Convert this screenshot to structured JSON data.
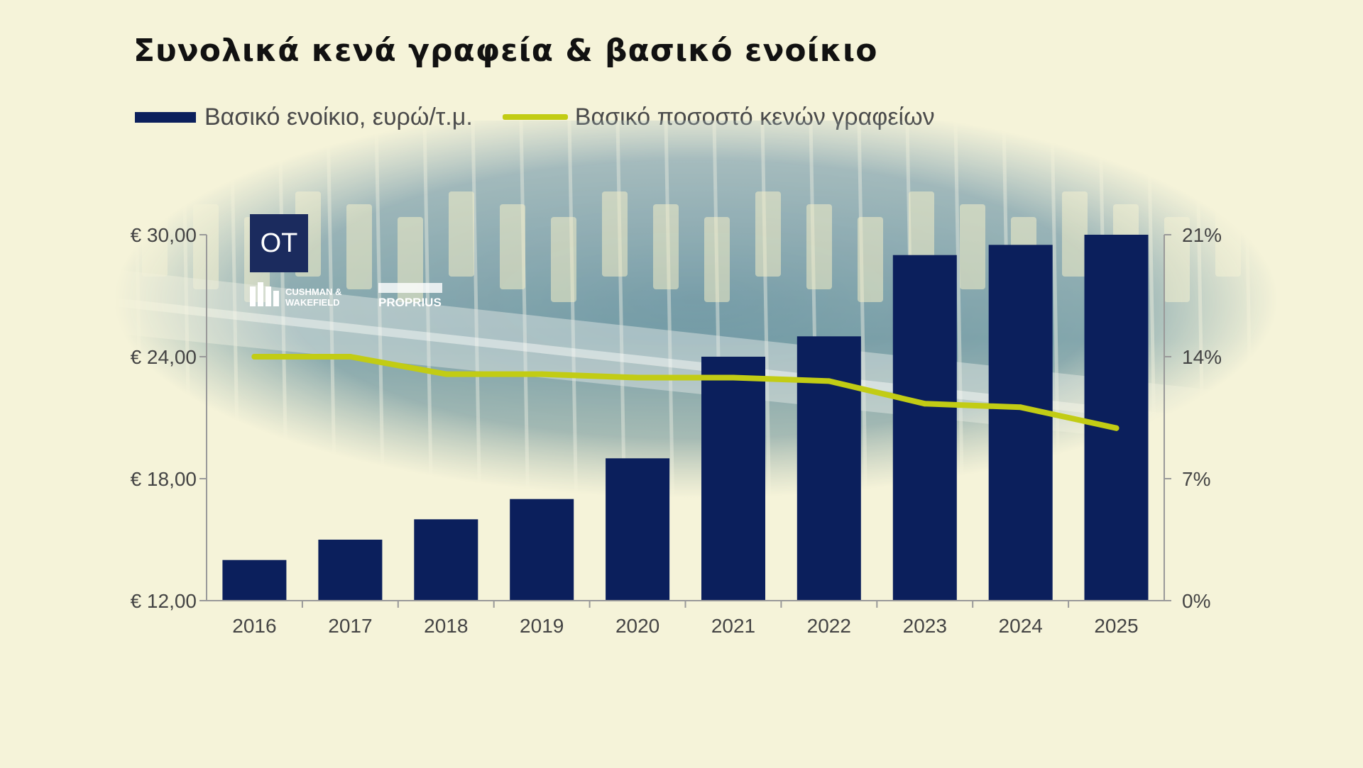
{
  "logos": {
    "ot": "OT",
    "cushman_line1": "CUSHMAN &",
    "cushman_line2": "WAKEFIELD",
    "proprius": "PROPRIUS"
  },
  "colors": {
    "background": "#f5f3d9",
    "bar": "#0b1f5c",
    "line": "#c2cc14",
    "text": "#444444"
  },
  "chart_data": {
    "type": "bar",
    "title": "Συνολικά κενά γραφεία & βασικό ενοίκιο",
    "legend_position": "top-left",
    "grid": false,
    "categories": [
      "2016",
      "2017",
      "2018",
      "2019",
      "2020",
      "2021",
      "2022",
      "2023",
      "2024",
      "2025"
    ],
    "series": [
      {
        "name": "Βασικό ενοίκιο, ευρώ/τ.μ.",
        "type": "bar",
        "axis": "left",
        "values": [
          14.0,
          15.0,
          16.0,
          17.0,
          19.0,
          24.0,
          25.0,
          29.0,
          29.5,
          30.0
        ]
      },
      {
        "name": "Βασικό ποσοστό κενών γραφείων",
        "type": "line",
        "axis": "right",
        "values": [
          14.0,
          14.0,
          13.0,
          13.0,
          12.8,
          12.8,
          12.6,
          11.3,
          11.1,
          9.9
        ]
      }
    ],
    "y_left": {
      "ylim": [
        12,
        30
      ],
      "ticks": [
        12,
        18,
        24,
        30
      ],
      "tick_labels": [
        "€ 12,00",
        "€ 18,00",
        "€ 24,00",
        "€ 30,00"
      ]
    },
    "y_right": {
      "ylim": [
        0,
        21
      ],
      "ticks": [
        0,
        7,
        14,
        21
      ],
      "tick_labels": [
        "0%",
        "7%",
        "14%",
        "21%"
      ]
    }
  }
}
